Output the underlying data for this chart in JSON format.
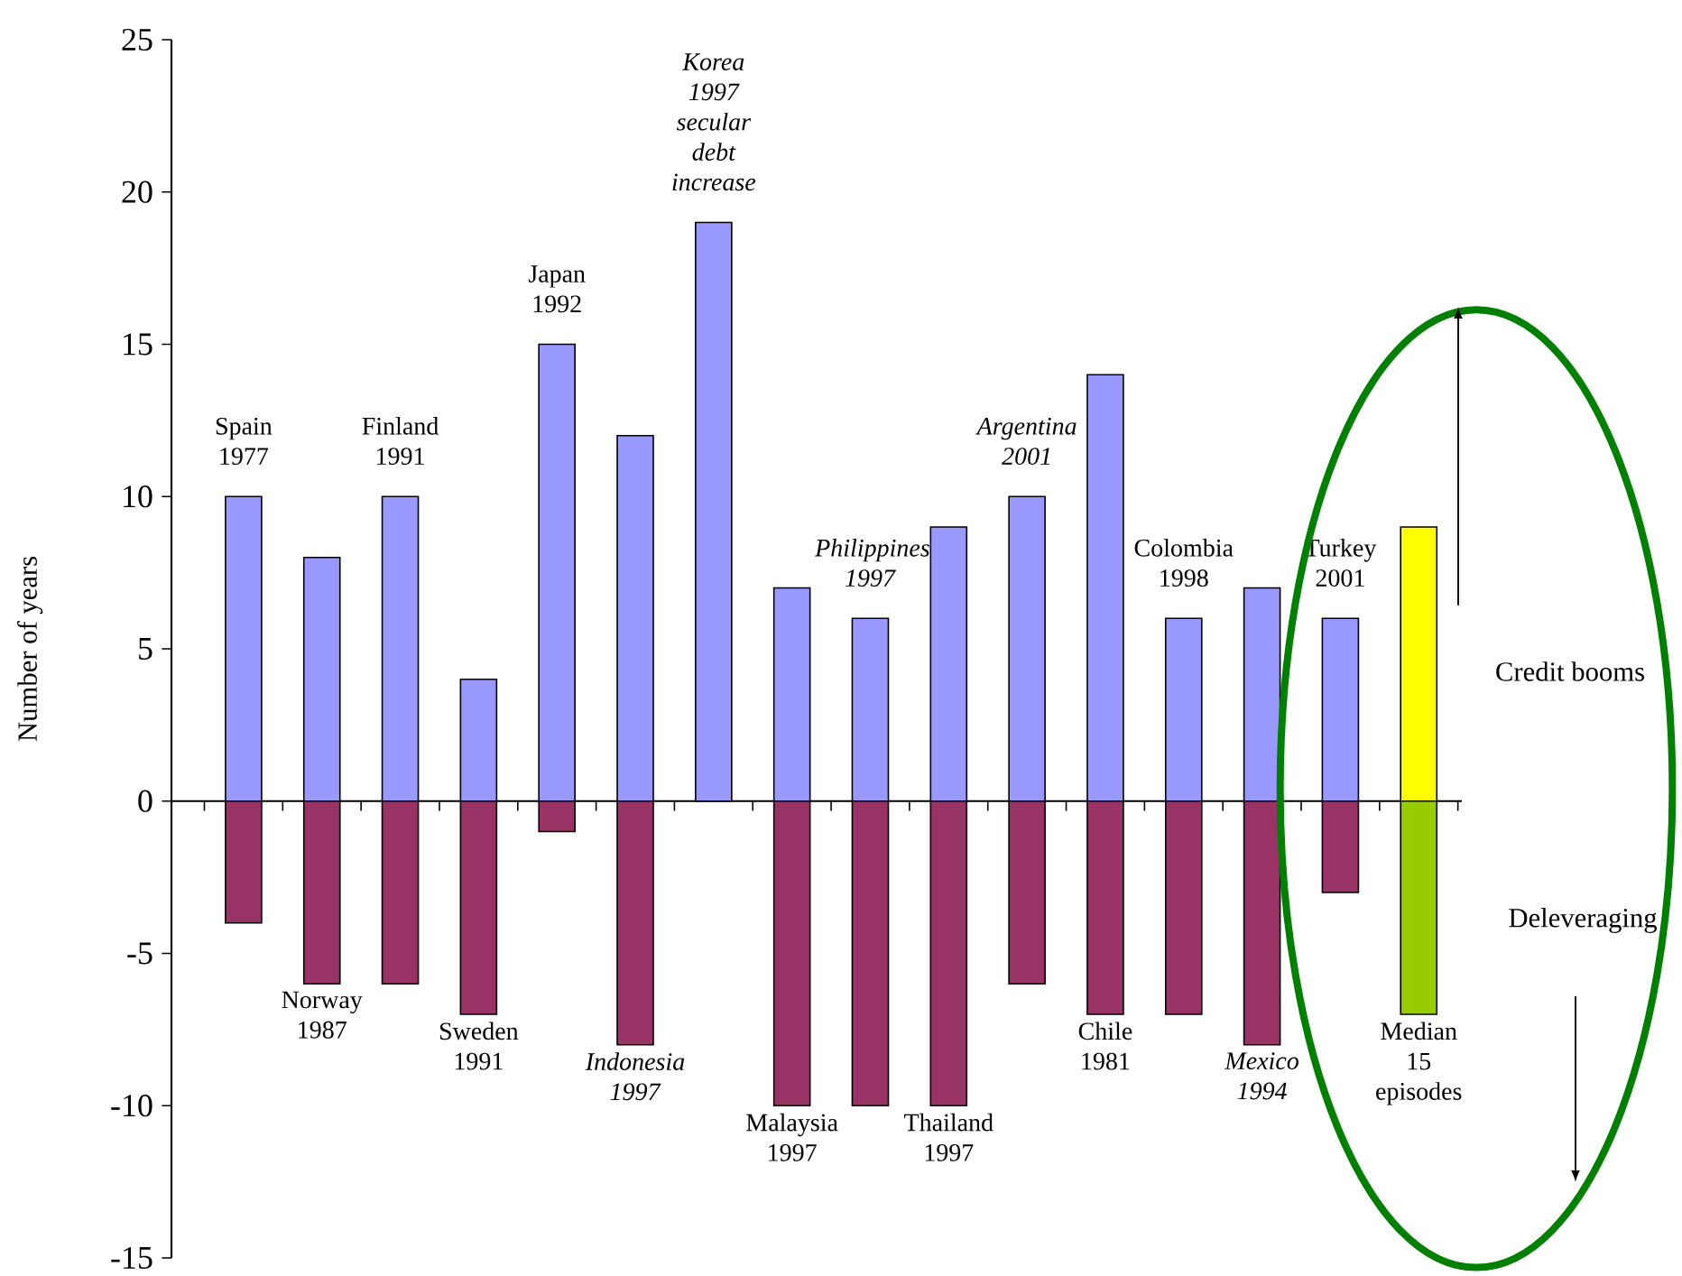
{
  "chart_data": {
    "type": "bar",
    "ylabel": "Number of years",
    "categories": [
      "Spain 1977",
      "Norway 1987",
      "Finland 1991",
      "Sweden 1991",
      "Japan 1992",
      "*Indonesia 1997*",
      "*Korea 1997 secular debt increase*",
      "Malaysia 1997",
      "*Philippines 1997*",
      "Thailand 1997",
      "*Argentina 2001*",
      "Chile 1981",
      "Colombia 1998",
      "*Mexico 1994*",
      "Turkey 2001",
      "Median 15 episodes"
    ],
    "series": [
      {
        "name": "Credit booms",
        "colors": [
          "#9999ff",
          "#9999ff",
          "#9999ff",
          "#9999ff",
          "#9999ff",
          "#9999ff",
          "#9999ff",
          "#9999ff",
          "#9999ff",
          "#9999ff",
          "#9999ff",
          "#9999ff",
          "#9999ff",
          "#9999ff",
          "#9999ff",
          "#ffff00"
        ],
        "values": [
          10,
          8,
          10,
          4,
          15,
          12,
          19,
          7,
          6,
          9,
          10,
          14,
          6,
          7,
          6,
          9
        ]
      },
      {
        "name": "Deleveraging",
        "colors": [
          "#993366",
          "#993366",
          "#993366",
          "#993366",
          "#993366",
          "#993366",
          "#993366",
          "#993366",
          "#993366",
          "#993366",
          "#993366",
          "#993366",
          "#993366",
          "#993366",
          "#993366",
          "#99cc00"
        ],
        "values": [
          -4,
          -6,
          -6,
          -7,
          -1,
          -8,
          null,
          -10,
          -10,
          -10,
          -6,
          -7,
          -7,
          -8,
          -3,
          -7
        ]
      }
    ],
    "ylim": [
      -15,
      25
    ],
    "yticks": [
      -15,
      -10,
      -5,
      0,
      5,
      10,
      15,
      20,
      25
    ],
    "stacked": true
  }
}
